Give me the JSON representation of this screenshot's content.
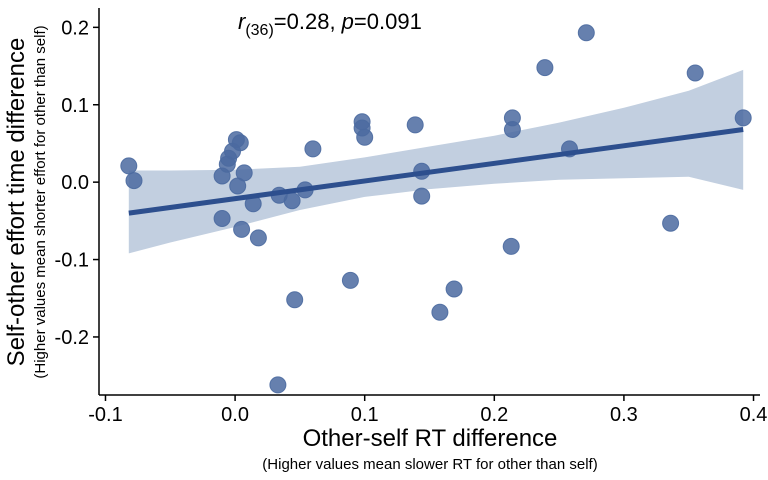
{
  "chart_data": {
    "type": "scatter",
    "annotation": {
      "r_symbol": "r",
      "df": "(36)",
      "rest": "=0.28, ",
      "p_symbol": "p",
      "p_rest": "=0.091"
    },
    "xlabel": "Other-self RT difference",
    "xlabel_sub": "(Higher values mean slower RT for other than self)",
    "ylabel": "Self-other effort time difference",
    "ylabel_sub": "(Higher values mean shorter effort for other than self)",
    "xlim": [
      -0.105,
      0.405
    ],
    "ylim": [
      -0.275,
      0.225
    ],
    "x_ticks": [
      {
        "value": -0.1,
        "label": "-0.1"
      },
      {
        "value": 0.0,
        "label": "0.0"
      },
      {
        "value": 0.1,
        "label": "0.1"
      },
      {
        "value": 0.2,
        "label": "0.2"
      },
      {
        "value": 0.3,
        "label": "0.3"
      },
      {
        "value": 0.4,
        "label": "0.4"
      }
    ],
    "y_ticks": [
      {
        "value": 0.2,
        "label": "0.2"
      },
      {
        "value": 0.1,
        "label": "0.1"
      },
      {
        "value": 0.0,
        "label": "0.0"
      },
      {
        "value": -0.1,
        "label": "-0.1"
      },
      {
        "value": -0.2,
        "label": "-0.2"
      }
    ],
    "grid": false,
    "point_color": "#4b6aa0",
    "line_color": "#2d4f8e",
    "band_color": "#c2cfe0",
    "points": [
      {
        "x": -0.082,
        "y": 0.021
      },
      {
        "x": -0.078,
        "y": 0.002
      },
      {
        "x": -0.01,
        "y": 0.008
      },
      {
        "x": -0.01,
        "y": -0.047
      },
      {
        "x": -0.006,
        "y": 0.023
      },
      {
        "x": -0.005,
        "y": 0.031
      },
      {
        "x": -0.002,
        "y": 0.04
      },
      {
        "x": 0.001,
        "y": 0.055
      },
      {
        "x": 0.004,
        "y": 0.051
      },
      {
        "x": 0.002,
        "y": -0.005
      },
      {
        "x": 0.007,
        "y": 0.012
      },
      {
        "x": 0.005,
        "y": -0.061
      },
      {
        "x": 0.014,
        "y": -0.028
      },
      {
        "x": 0.018,
        "y": -0.072
      },
      {
        "x": 0.034,
        "y": -0.017
      },
      {
        "x": 0.044,
        "y": -0.024
      },
      {
        "x": 0.054,
        "y": -0.01
      },
      {
        "x": 0.06,
        "y": 0.043
      },
      {
        "x": 0.046,
        "y": -0.152
      },
      {
        "x": 0.033,
        "y": -0.262
      },
      {
        "x": 0.089,
        "y": -0.127
      },
      {
        "x": 0.098,
        "y": 0.078
      },
      {
        "x": 0.098,
        "y": 0.07
      },
      {
        "x": 0.1,
        "y": 0.058
      },
      {
        "x": 0.139,
        "y": 0.074
      },
      {
        "x": 0.144,
        "y": 0.014
      },
      {
        "x": 0.144,
        "y": -0.018
      },
      {
        "x": 0.158,
        "y": -0.168
      },
      {
        "x": 0.169,
        "y": -0.138
      },
      {
        "x": 0.213,
        "y": -0.083
      },
      {
        "x": 0.214,
        "y": 0.083
      },
      {
        "x": 0.214,
        "y": 0.068
      },
      {
        "x": 0.239,
        "y": 0.148
      },
      {
        "x": 0.258,
        "y": 0.043
      },
      {
        "x": 0.271,
        "y": 0.193
      },
      {
        "x": 0.336,
        "y": -0.053
      },
      {
        "x": 0.355,
        "y": 0.141
      },
      {
        "x": 0.392,
        "y": 0.083
      }
    ],
    "fit_line": {
      "x": [
        -0.082,
        0.392
      ],
      "y": [
        -0.04,
        0.068
      ]
    },
    "confidence_band": {
      "x": [
        -0.082,
        -0.05,
        0.0,
        0.05,
        0.1,
        0.15,
        0.2,
        0.25,
        0.3,
        0.35,
        0.392
      ],
      "upper": [
        0.015,
        0.015,
        0.016,
        0.02,
        0.032,
        0.046,
        0.06,
        0.077,
        0.096,
        0.118,
        0.145
      ],
      "lower": [
        -0.092,
        -0.078,
        -0.058,
        -0.036,
        -0.019,
        -0.009,
        -0.002,
        0.003,
        0.005,
        0.007,
        -0.01
      ]
    }
  }
}
